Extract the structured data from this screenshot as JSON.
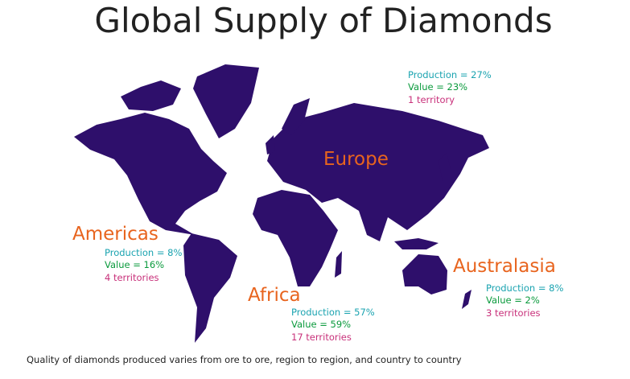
{
  "header": {
    "title": "Global Supply of Diamonds"
  },
  "regions": [
    {
      "name": "Americas",
      "production": "Production = 8%",
      "value": "Value = 16%",
      "territories": "4 territories"
    },
    {
      "name": "Europe",
      "production": "Production = 27%",
      "value": "Value = 23%",
      "territories": "1 territory"
    },
    {
      "name": "Africa",
      "production": "Production = 57%",
      "value": "Value = 59%",
      "territories": "17 territories"
    },
    {
      "name": "Australasia",
      "production": "Production = 8%",
      "value": "Value = 2%",
      "territories": "3 territories"
    }
  ],
  "footer": "Quality of diamonds produced varies from ore to ore, region to region, and country to country"
}
